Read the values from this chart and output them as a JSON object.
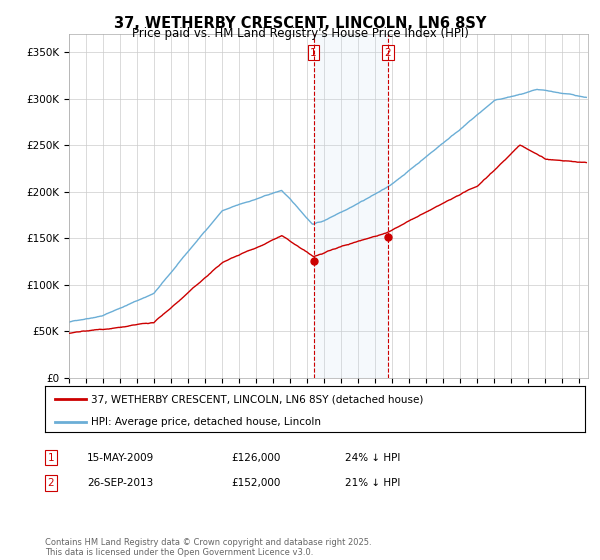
{
  "title": "37, WETHERBY CRESCENT, LINCOLN, LN6 8SY",
  "subtitle": "Price paid vs. HM Land Registry's House Price Index (HPI)",
  "ylim": [
    0,
    370000
  ],
  "xlim_start": 1995.0,
  "xlim_end": 2025.5,
  "background_color": "#ffffff",
  "plot_bg_color": "#ffffff",
  "grid_color": "#cccccc",
  "hpi_color": "#6baed6",
  "price_color": "#cc0000",
  "hpi_fill_color": "#ddeeff",
  "ann1_x": 2009.37,
  "ann1_y": 126000,
  "ann2_x": 2013.73,
  "ann2_y": 152000,
  "legend_line1": "37, WETHERBY CRESCENT, LINCOLN, LN6 8SY (detached house)",
  "legend_line2": "HPI: Average price, detached house, Lincoln",
  "footer": "Contains HM Land Registry data © Crown copyright and database right 2025.\nThis data is licensed under the Open Government Licence v3.0.",
  "table_rows": [
    [
      "1",
      "15-MAY-2009",
      "£126,000",
      "24% ↓ HPI"
    ],
    [
      "2",
      "26-SEP-2013",
      "£152,000",
      "21% ↓ HPI"
    ]
  ]
}
